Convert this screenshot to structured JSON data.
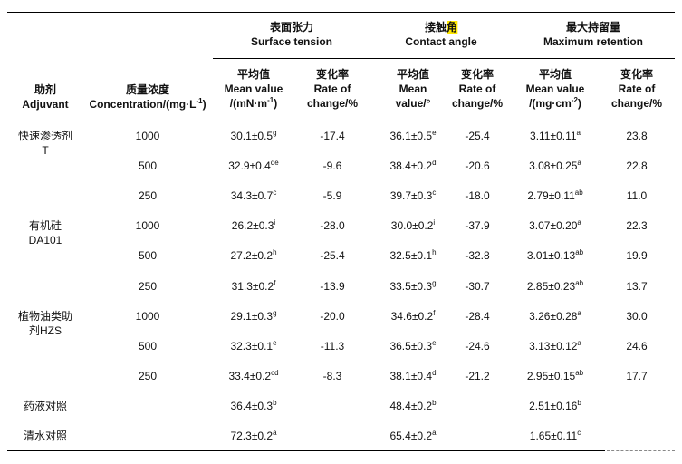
{
  "groups": [
    {
      "zh": "表面张力",
      "en": "Surface tension"
    },
    {
      "zh_pre": "接触",
      "zh_hl": "角",
      "en": "Contact angle"
    },
    {
      "zh": "最大持留量",
      "en": "Maximum retention"
    }
  ],
  "headers": {
    "adjuvant": {
      "zh": "助剂",
      "en": "Adjuvant"
    },
    "concentration": {
      "zh": "质量浓度",
      "en": "Concentration/(mg·L",
      "sup": "-1",
      "tail": ")"
    },
    "sub": [
      {
        "zh": "平均值",
        "l1": "Mean value",
        "l2": "/(mN·m",
        "sup": "-1",
        "tail": ")"
      },
      {
        "zh": "变化率",
        "l1": "Rate of",
        "l2": "change/%"
      },
      {
        "zh": "平均值",
        "l1": "Mean",
        "l2": "value/°"
      },
      {
        "zh": "变化率",
        "l1": "Rate of",
        "l2": "change/%"
      },
      {
        "zh": "平均值",
        "l1": "Mean value",
        "l2": "/(mg·cm",
        "sup": "-2",
        "tail": ")"
      },
      {
        "zh": "变化率",
        "l1": "Rate of",
        "l2": "change/%"
      }
    ]
  },
  "rows": [
    {
      "adjuvant": [
        "快速渗透剂",
        "T"
      ],
      "conc": "1000",
      "st": [
        "30.1±0.5",
        "g"
      ],
      "st_rate": "-17.4",
      "ca": [
        "36.1±0.5",
        "e"
      ],
      "ca_rate": "-25.4",
      "mr": [
        "3.11±0.11",
        "a"
      ],
      "mr_rate": "23.8"
    },
    {
      "adjuvant": [],
      "conc": "500",
      "st": [
        "32.9±0.4",
        "de"
      ],
      "st_rate": "-9.6",
      "ca": [
        "38.4±0.2",
        "d"
      ],
      "ca_rate": "-20.6",
      "mr": [
        "3.08±0.25",
        "a"
      ],
      "mr_rate": "22.8"
    },
    {
      "adjuvant": [],
      "conc": "250",
      "st": [
        "34.3±0.7",
        "c"
      ],
      "st_rate": "-5.9",
      "ca": [
        "39.7±0.3",
        "c"
      ],
      "ca_rate": "-18.0",
      "mr": [
        "2.79±0.11",
        "ab"
      ],
      "mr_rate": "11.0"
    },
    {
      "adjuvant": [
        "有机硅",
        "DA101"
      ],
      "conc": "1000",
      "st": [
        "26.2±0.3",
        "i"
      ],
      "st_rate": "-28.0",
      "ca": [
        "30.0±0.2",
        "i"
      ],
      "ca_rate": "-37.9",
      "mr": [
        "3.07±0.20",
        "a"
      ],
      "mr_rate": "22.3"
    },
    {
      "adjuvant": [],
      "conc": "500",
      "st": [
        "27.2±0.2",
        "h"
      ],
      "st_rate": "-25.4",
      "ca": [
        "32.5±0.1",
        "h"
      ],
      "ca_rate": "-32.8",
      "mr": [
        "3.01±0.13",
        "ab"
      ],
      "mr_rate": "19.9"
    },
    {
      "adjuvant": [],
      "conc": "250",
      "st": [
        "31.3±0.2",
        "f"
      ],
      "st_rate": "-13.9",
      "ca": [
        "33.5±0.3",
        "g"
      ],
      "ca_rate": "-30.7",
      "mr": [
        "2.85±0.23",
        "ab"
      ],
      "mr_rate": "13.7"
    },
    {
      "adjuvant": [
        "植物油类助",
        "剂HZS"
      ],
      "conc": "1000",
      "st": [
        "29.1±0.3",
        "g"
      ],
      "st_rate": "-20.0",
      "ca": [
        "34.6±0.2",
        "f"
      ],
      "ca_rate": "-28.4",
      "mr": [
        "3.26±0.28",
        "a"
      ],
      "mr_rate": "30.0"
    },
    {
      "adjuvant": [],
      "conc": "500",
      "st": [
        "32.3±0.1",
        "e"
      ],
      "st_rate": "-11.3",
      "ca": [
        "36.5±0.3",
        "e"
      ],
      "ca_rate": "-24.6",
      "mr": [
        "3.13±0.12",
        "a"
      ],
      "mr_rate": "24.6"
    },
    {
      "adjuvant": [],
      "conc": "250",
      "st": [
        "33.4±0.2",
        "cd"
      ],
      "st_rate": "-8.3",
      "ca": [
        "38.1±0.4",
        "d"
      ],
      "ca_rate": "-21.2",
      "mr": [
        "2.95±0.15",
        "ab"
      ],
      "mr_rate": "17.7"
    },
    {
      "adjuvant": [
        "药液对照"
      ],
      "conc": "",
      "st": [
        "36.4±0.3",
        "b"
      ],
      "st_rate": "",
      "ca": [
        "48.4±0.2",
        "b"
      ],
      "ca_rate": "",
      "mr": [
        "2.51±0.16",
        "b"
      ],
      "mr_rate": ""
    },
    {
      "adjuvant": [
        "清水对照"
      ],
      "conc": "",
      "st": [
        "72.3±0.2",
        "a"
      ],
      "st_rate": "",
      "ca": [
        "65.4±0.2",
        "a"
      ],
      "ca_rate": "",
      "mr": [
        "1.65±0.11",
        "c"
      ],
      "mr_rate": ""
    }
  ],
  "colors": {
    "highlight": "#ffe800",
    "rule": "#000000"
  }
}
